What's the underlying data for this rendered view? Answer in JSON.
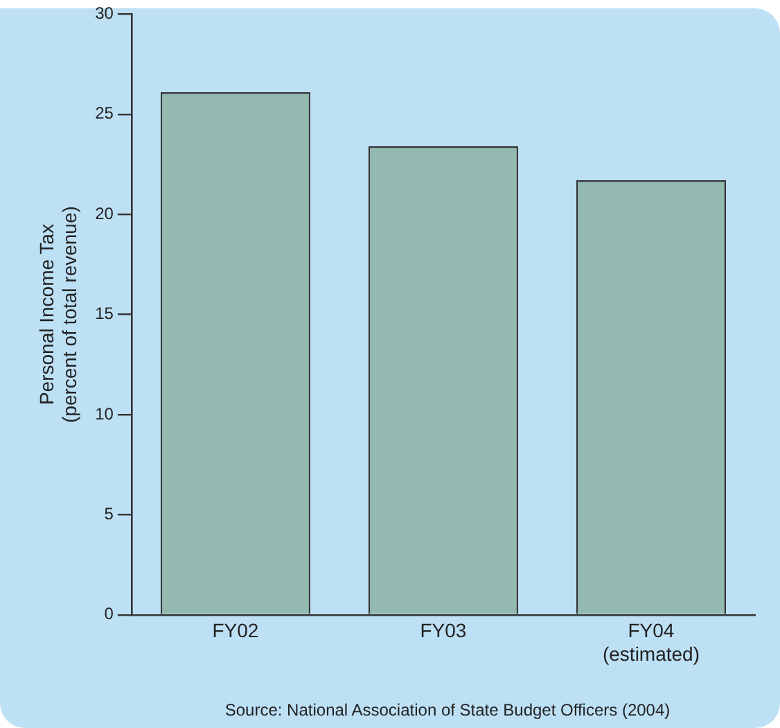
{
  "chart_data": {
    "type": "bar",
    "ylabel": "Personal Income Tax\n(percent of total revenue)",
    "categories": [
      "FY02",
      "FY03",
      "FY04\n(estimated)"
    ],
    "values": [
      26.1,
      23.4,
      21.7
    ],
    "color": "#93b9b0",
    "ylim": [
      0,
      30
    ],
    "yticks": [
      0,
      5,
      10,
      15,
      20,
      25,
      30
    ],
    "grid": false,
    "legend": false,
    "annotations": [
      "Source: National Association of State Budget Officers (2004)"
    ]
  }
}
